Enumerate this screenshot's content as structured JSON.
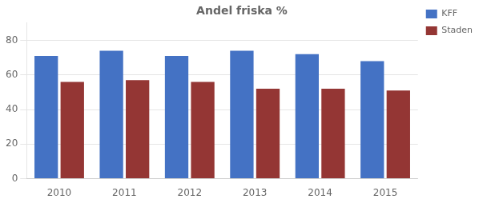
{
  "chart_data": {
    "type": "bar",
    "title": "Andel friska %",
    "categories": [
      "2010",
      "2011",
      "2012",
      "2013",
      "2014",
      "2015"
    ],
    "series": [
      {
        "name": "KFF",
        "color": "#4472C4",
        "values": [
          71,
          74,
          71,
          74,
          72,
          68
        ]
      },
      {
        "name": "Staden",
        "color": "#943634",
        "values": [
          56,
          57,
          56,
          52,
          52,
          51
        ]
      }
    ],
    "ylim": [
      0,
      90
    ],
    "yticks": [
      0,
      20,
      40,
      60,
      80
    ],
    "grid": true,
    "legend": "right"
  }
}
